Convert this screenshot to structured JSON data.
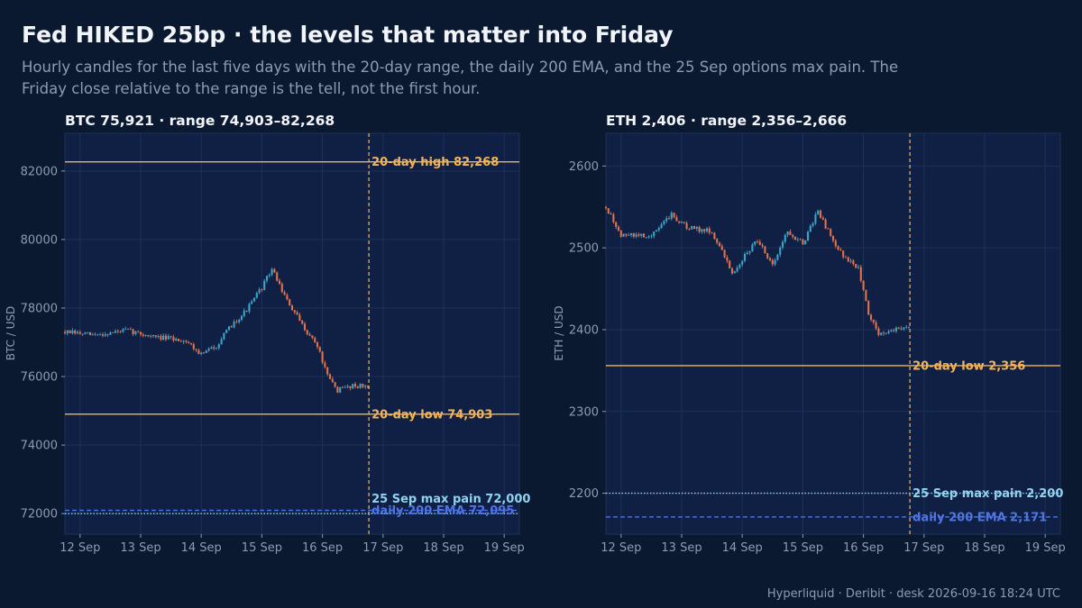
{
  "header": {
    "title": "Fed HIKED 25bp · the levels that matter into Friday",
    "subtitle": "Hourly candles for the last five days with the 20-day range, the daily 200 EMA, and the 25 Sep options max pain. The Friday close relative to the range is the tell, not the first hour."
  },
  "footer": {
    "source": "Hyperliquid · Deribit · desk 2026-09-16 18:24 UTC"
  },
  "colors": {
    "background": "#0b1930",
    "plot_bg": "#0f2044",
    "up": "#3aa5c8",
    "down": "#e0734e",
    "range": "#f5b453",
    "ema": "#4f74e3",
    "max_pain": "#8fd3f0",
    "now_line": "#f5b453"
  },
  "chart_data": [
    {
      "type": "candlestick",
      "asset": "BTC",
      "title": "BTC 75,921 · range 74,903–82,268",
      "ylabel": "BTC / USD",
      "ylim": [
        71400,
        83100
      ],
      "yticks": [
        72000,
        74000,
        76000,
        78000,
        80000,
        82000
      ],
      "ytick_labels": [
        "72000",
        "74000",
        "76000",
        "78000",
        "80000",
        "82000"
      ],
      "xlim": [
        "2026-09-11T18:00",
        "2026-09-19T06:00"
      ],
      "xticks": [
        "2026-09-12",
        "2026-09-13",
        "2026-09-14",
        "2026-09-15",
        "2026-09-16",
        "2026-09-17",
        "2026-09-18",
        "2026-09-19"
      ],
      "xtick_labels": [
        "12 Sep",
        "13 Sep",
        "14 Sep",
        "15 Sep",
        "16 Sep",
        "17 Sep",
        "18 Sep",
        "19 Sep"
      ],
      "now": "2026-09-16T18:24",
      "path": [
        [
          "2026-09-11T18:00",
          77300
        ],
        [
          "2026-09-12T06:00",
          77200
        ],
        [
          "2026-09-12T18:00",
          77350
        ],
        [
          "2026-09-13T06:00",
          77150
        ],
        [
          "2026-09-13T18:00",
          77050
        ],
        [
          "2026-09-14T00:00",
          76650
        ],
        [
          "2026-09-14T06:00",
          76900
        ],
        [
          "2026-09-14T12:00",
          77500
        ],
        [
          "2026-09-14T18:00",
          77950
        ],
        [
          "2026-09-15T00:00",
          78600
        ],
        [
          "2026-09-15T04:00",
          79150
        ],
        [
          "2026-09-15T10:00",
          78200
        ],
        [
          "2026-09-15T16:00",
          77500
        ],
        [
          "2026-09-15T22:00",
          76900
        ],
        [
          "2026-09-16T02:00",
          76000
        ],
        [
          "2026-09-16T06:00",
          75600
        ],
        [
          "2026-09-16T12:00",
          75750
        ],
        [
          "2026-09-16T18:00",
          75700
        ]
      ],
      "levels": [
        {
          "name": "20-day high",
          "value": 82268,
          "label": "20-day high 82,268",
          "style": "solid",
          "color": "range"
        },
        {
          "name": "20-day low",
          "value": 74903,
          "label": "20-day low 74,903",
          "style": "solid",
          "color": "range"
        },
        {
          "name": "daily 200 EMA",
          "value": 72095,
          "label": "daily 200 EMA 72,095",
          "style": "dashed",
          "color": "ema"
        },
        {
          "name": "25 Sep max pain",
          "value": 72000,
          "label": "25 Sep max pain 72,000",
          "style": "dotted",
          "color": "max_pain"
        }
      ]
    },
    {
      "type": "candlestick",
      "asset": "ETH",
      "title": "ETH 2,406 · range 2,356–2,666",
      "ylabel": "ETH / USD",
      "ylim": [
        2150,
        2640
      ],
      "yticks": [
        2200,
        2300,
        2400,
        2500,
        2600
      ],
      "ytick_labels": [
        "2200",
        "2300",
        "2400",
        "2500",
        "2600"
      ],
      "xlim": [
        "2026-09-11T18:00",
        "2026-09-19T06:00"
      ],
      "xticks": [
        "2026-09-12",
        "2026-09-13",
        "2026-09-14",
        "2026-09-15",
        "2026-09-16",
        "2026-09-17",
        "2026-09-18",
        "2026-09-19"
      ],
      "xtick_labels": [
        "12 Sep",
        "13 Sep",
        "14 Sep",
        "15 Sep",
        "16 Sep",
        "17 Sep",
        "18 Sep",
        "19 Sep"
      ],
      "now": "2026-09-16T18:24",
      "path": [
        [
          "2026-09-11T18:00",
          2550
        ],
        [
          "2026-09-12T00:00",
          2515
        ],
        [
          "2026-09-12T12:00",
          2515
        ],
        [
          "2026-09-12T20:00",
          2540
        ],
        [
          "2026-09-13T02:00",
          2525
        ],
        [
          "2026-09-13T12:00",
          2520
        ],
        [
          "2026-09-13T20:00",
          2470
        ],
        [
          "2026-09-14T06:00",
          2510
        ],
        [
          "2026-09-14T12:00",
          2480
        ],
        [
          "2026-09-14T18:00",
          2520
        ],
        [
          "2026-09-15T00:00",
          2505
        ],
        [
          "2026-09-15T06:00",
          2545
        ],
        [
          "2026-09-15T10:00",
          2520
        ],
        [
          "2026-09-15T16:00",
          2490
        ],
        [
          "2026-09-15T22:00",
          2475
        ],
        [
          "2026-09-16T02:00",
          2420
        ],
        [
          "2026-09-16T06:00",
          2395
        ],
        [
          "2026-09-16T12:00",
          2400
        ],
        [
          "2026-09-16T18:00",
          2405
        ]
      ],
      "levels": [
        {
          "name": "20-day low",
          "value": 2356,
          "label": "20-day low 2,356",
          "style": "solid",
          "color": "range"
        },
        {
          "name": "25 Sep max pain",
          "value": 2200,
          "label": "25 Sep max pain 2,200",
          "style": "dotted",
          "color": "max_pain"
        },
        {
          "name": "daily 200 EMA",
          "value": 2171,
          "label": "daily 200 EMA 2,171",
          "style": "dashed",
          "color": "ema"
        }
      ]
    }
  ]
}
